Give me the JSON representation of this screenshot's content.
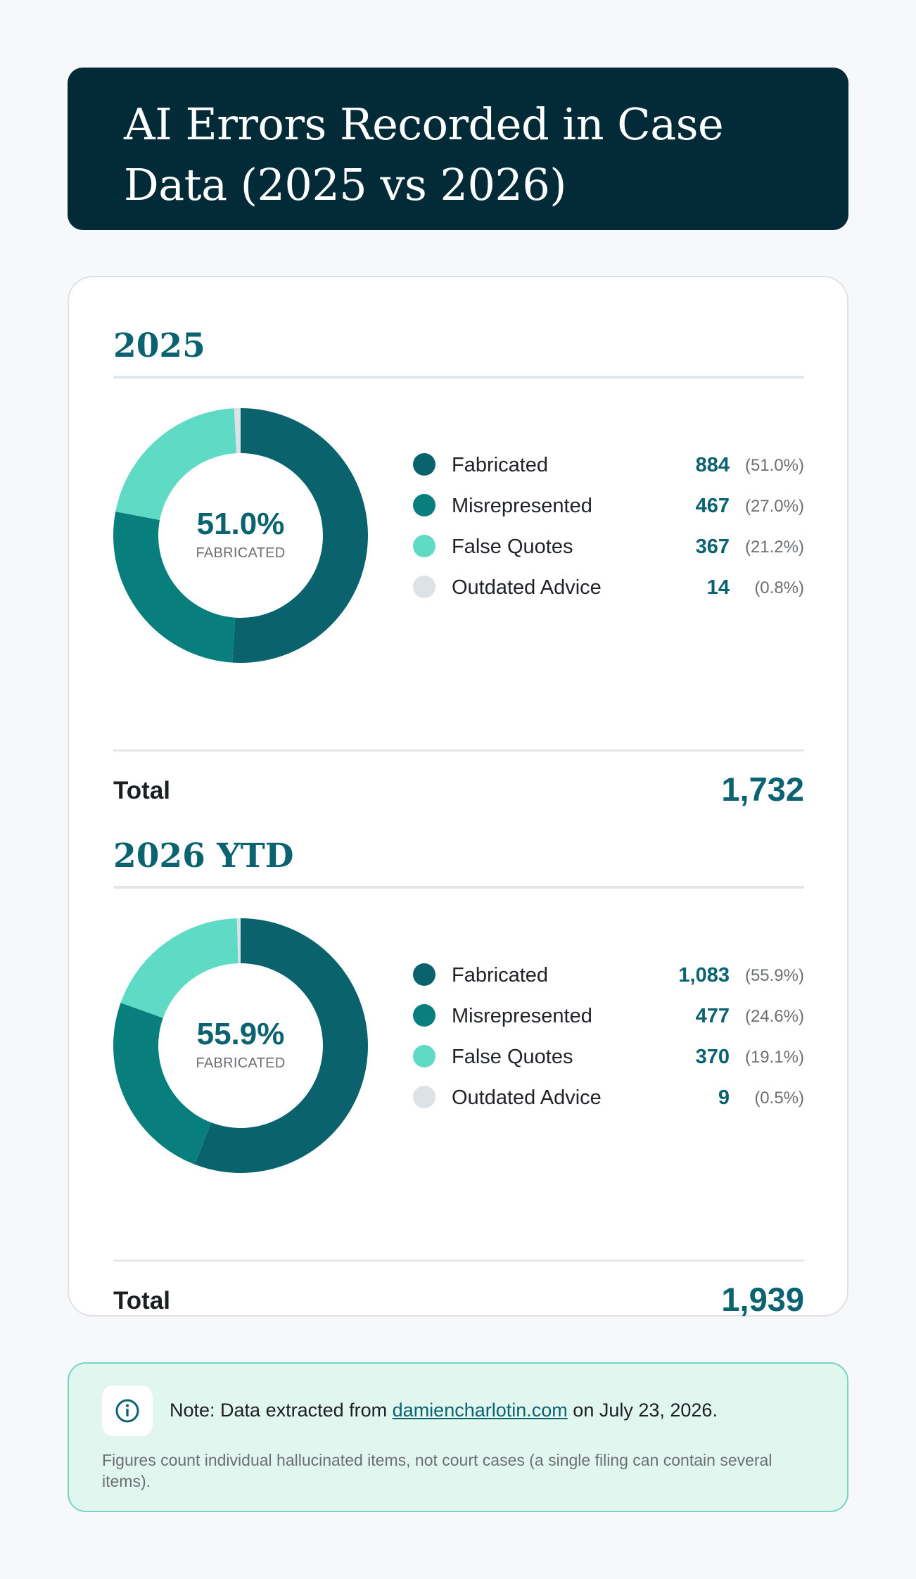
{
  "title": "AI Errors Recorded in Case Data (2025 vs 2026)",
  "colors": {
    "fabricated": "#0a626d",
    "misrepresented": "#087f7c",
    "false_quotes": "#5fdac4",
    "outdated_advice": "#dde2e6"
  },
  "chart_data": [
    {
      "type": "pie",
      "title": "2025",
      "center_value": "51.0%",
      "center_label": "FABRICATED",
      "slices": [
        {
          "label": "Fabricated",
          "value": 884,
          "value_text": "884",
          "percent": "(51.0%)",
          "color": "#0a626d"
        },
        {
          "label": "Misrepresented",
          "value": 467,
          "value_text": "467",
          "percent": "(27.0%)",
          "color": "#087f7c"
        },
        {
          "label": "False Quotes",
          "value": 367,
          "value_text": "367",
          "percent": "(21.2%)",
          "color": "#5fdac4"
        },
        {
          "label": "Outdated Advice",
          "value": 14,
          "value_text": "14",
          "percent": "(0.8%)",
          "color": "#dde2e6"
        }
      ],
      "total_label": "Total",
      "total_value": "1,732"
    },
    {
      "type": "pie",
      "title": "2026 YTD",
      "center_value": "55.9%",
      "center_label": "FABRICATED",
      "slices": [
        {
          "label": "Fabricated",
          "value": 1083,
          "value_text": "1,083",
          "percent": "(55.9%)",
          "color": "#0a626d"
        },
        {
          "label": "Misrepresented",
          "value": 477,
          "value_text": "477",
          "percent": "(24.6%)",
          "color": "#087f7c"
        },
        {
          "label": "False Quotes",
          "value": 370,
          "value_text": "370",
          "percent": "(19.1%)",
          "color": "#5fdac4"
        },
        {
          "label": "Outdated Advice",
          "value": 9,
          "value_text": "9",
          "percent": "(0.5%)",
          "color": "#dde2e6"
        }
      ],
      "total_label": "Total",
      "total_value": "1,939"
    }
  ],
  "note": {
    "icon": "info-icon",
    "prefix": "Note: Data extracted from",
    "link_text": "damiencharlotin.com",
    "suffix": "on July 23, 2026.",
    "detail": "Figures count individual hallucinated items, not court cases (a single filing can contain several items)."
  }
}
